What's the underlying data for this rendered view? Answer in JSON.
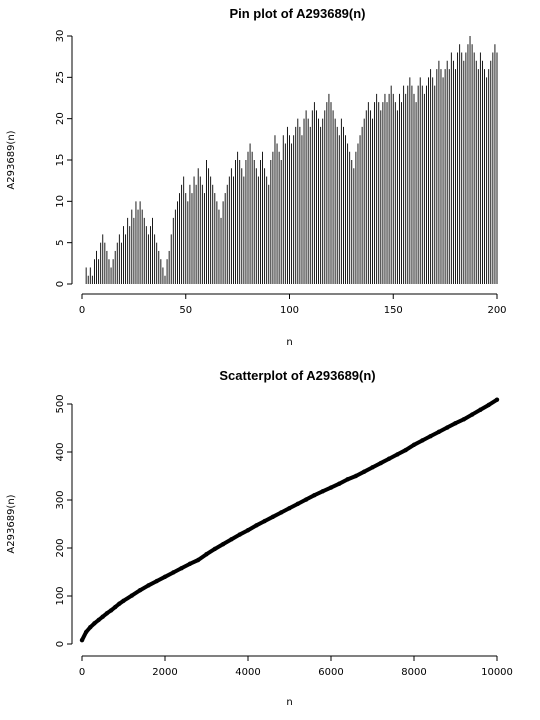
{
  "chart_data": [
    {
      "type": "pin",
      "title": "Pin plot of A293689(n)",
      "xlabel": "n",
      "ylabel": "A293689(n)",
      "xlim": [
        0,
        200
      ],
      "ylim": [
        0,
        30
      ],
      "x_ticks": [
        0,
        50,
        100,
        150,
        200
      ],
      "y_ticks": [
        0,
        5,
        10,
        15,
        20,
        25,
        30
      ],
      "x_tick_labels": [
        "0",
        "50",
        "100",
        "150",
        "200"
      ],
      "y_tick_labels": [
        "0",
        "5",
        "10",
        "15",
        "20",
        "25",
        "30"
      ],
      "grid": false,
      "x": [
        1,
        2,
        3,
        4,
        5,
        6,
        7,
        8,
        9,
        10,
        11,
        12,
        13,
        14,
        15,
        16,
        17,
        18,
        19,
        20,
        21,
        22,
        23,
        24,
        25,
        26,
        27,
        28,
        29,
        30,
        31,
        32,
        33,
        34,
        35,
        36,
        37,
        38,
        39,
        40,
        41,
        42,
        43,
        44,
        45,
        46,
        47,
        48,
        49,
        50,
        51,
        52,
        53,
        54,
        55,
        56,
        57,
        58,
        59,
        60,
        61,
        62,
        63,
        64,
        65,
        66,
        67,
        68,
        69,
        70,
        71,
        72,
        73,
        74,
        75,
        76,
        77,
        78,
        79,
        80,
        81,
        82,
        83,
        84,
        85,
        86,
        87,
        88,
        89,
        90,
        91,
        92,
        93,
        94,
        95,
        96,
        97,
        98,
        99,
        100,
        101,
        102,
        103,
        104,
        105,
        106,
        107,
        108,
        109,
        110,
        111,
        112,
        113,
        114,
        115,
        116,
        117,
        118,
        119,
        120,
        121,
        122,
        123,
        124,
        125,
        126,
        127,
        128,
        129,
        130,
        131,
        132,
        133,
        134,
        135,
        136,
        137,
        138,
        139,
        140,
        141,
        142,
        143,
        144,
        145,
        146,
        147,
        148,
        149,
        150,
        151,
        152,
        153,
        154,
        155,
        156,
        157,
        158,
        159,
        160,
        161,
        162,
        163,
        164,
        165,
        166,
        167,
        168,
        169,
        170,
        171,
        172,
        173,
        174,
        175,
        176,
        177,
        178,
        179,
        180,
        181,
        182,
        183,
        184,
        185,
        186,
        187,
        188,
        189,
        190,
        191,
        192,
        193,
        194,
        195,
        196,
        197,
        198,
        199,
        200
      ],
      "y": [
        0,
        2,
        1,
        2,
        1,
        3,
        4,
        3,
        5,
        6,
        5,
        4,
        3,
        2,
        3,
        4,
        5,
        6,
        5,
        7,
        6,
        8,
        7,
        9,
        8,
        10,
        9,
        10,
        9,
        8,
        7,
        6,
        7,
        8,
        6,
        5,
        4,
        3,
        2,
        1,
        3,
        4,
        6,
        8,
        9,
        10,
        11,
        12,
        13,
        11,
        10,
        12,
        11,
        13,
        12,
        14,
        13,
        12,
        11,
        15,
        14,
        13,
        12,
        11,
        10,
        9,
        8,
        10,
        11,
        12,
        13,
        14,
        13,
        15,
        16,
        15,
        14,
        13,
        15,
        16,
        17,
        16,
        15,
        14,
        13,
        15,
        16,
        14,
        13,
        12,
        15,
        16,
        18,
        17,
        16,
        15,
        18,
        17,
        19,
        18,
        17,
        18,
        19,
        20,
        19,
        18,
        20,
        21,
        20,
        19,
        21,
        22,
        21,
        20,
        19,
        20,
        21,
        22,
        23,
        22,
        21,
        20,
        19,
        18,
        20,
        19,
        18,
        17,
        16,
        15,
        14,
        16,
        17,
        18,
        19,
        20,
        21,
        22,
        21,
        20,
        22,
        23,
        22,
        21,
        22,
        23,
        22,
        23,
        24,
        23,
        22,
        21,
        23,
        22,
        24,
        23,
        24,
        25,
        24,
        23,
        22,
        24,
        25,
        24,
        23,
        24,
        25,
        26,
        25,
        24,
        26,
        27,
        26,
        25,
        26,
        27,
        26,
        28,
        27,
        26,
        28,
        29,
        28,
        27,
        28,
        29,
        30,
        29,
        28,
        27,
        26,
        28,
        27,
        26,
        25,
        26,
        27,
        28,
        29,
        28
      ]
    },
    {
      "type": "scatter",
      "title": "Scatterplot of A293689(n)",
      "xlabel": "n",
      "ylabel": "A293689(n)",
      "xlim": [
        0,
        10000
      ],
      "ylim": [
        0,
        500
      ],
      "x_ticks": [
        0,
        2000,
        4000,
        6000,
        8000,
        10000
      ],
      "y_ticks": [
        0,
        100,
        200,
        300,
        400,
        500
      ],
      "x_tick_labels": [
        "0",
        "2000",
        "4000",
        "6000",
        "8000",
        "10000"
      ],
      "y_tick_labels": [
        "0",
        "100",
        "200",
        "300",
        "400",
        "500"
      ],
      "grid": false,
      "x": [
        0,
        100,
        200,
        300,
        400,
        500,
        600,
        700,
        800,
        900,
        1000,
        1200,
        1400,
        1600,
        1800,
        2000,
        2200,
        2400,
        2600,
        2800,
        3000,
        3200,
        3400,
        3600,
        3800,
        4000,
        4200,
        4400,
        4600,
        4800,
        5000,
        5200,
        5400,
        5600,
        5800,
        6000,
        6200,
        6400,
        6600,
        6800,
        7000,
        7200,
        7400,
        7600,
        7800,
        8000,
        8200,
        8400,
        8600,
        8800,
        9000,
        9200,
        9400,
        9600,
        9800,
        10000
      ],
      "y": [
        8,
        25,
        35,
        43,
        50,
        57,
        64,
        70,
        77,
        84,
        90,
        101,
        112,
        122,
        131,
        140,
        149,
        158,
        167,
        175,
        187,
        198,
        208,
        218,
        228,
        237,
        247,
        256,
        265,
        274,
        283,
        292,
        301,
        310,
        318,
        326,
        334,
        343,
        350,
        359,
        368,
        377,
        386,
        395,
        404,
        415,
        424,
        433,
        442,
        451,
        460,
        468,
        478,
        488,
        498,
        509
      ]
    }
  ]
}
